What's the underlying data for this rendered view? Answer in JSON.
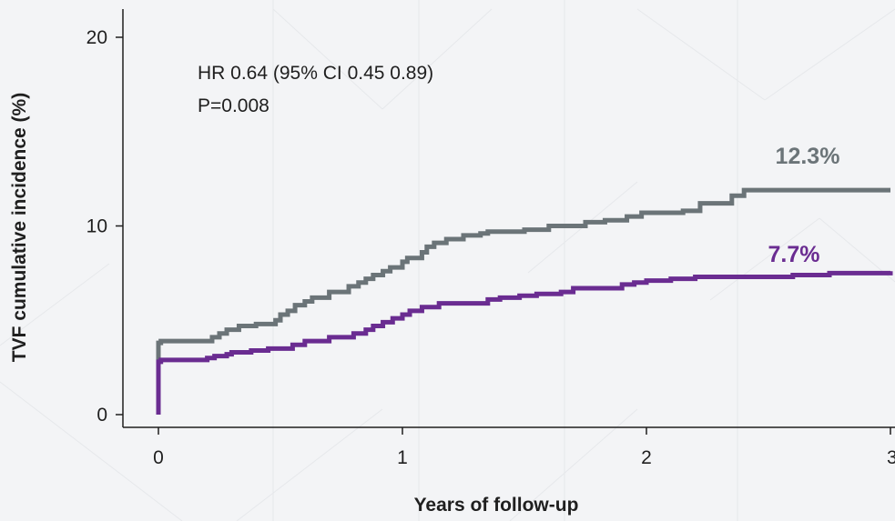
{
  "chart_data": {
    "type": "line",
    "title": "",
    "xlabel": "Years of follow-up",
    "ylabel": "TVF cumulative incidence (%)",
    "xlim": [
      0,
      3
    ],
    "ylim": [
      0,
      20
    ],
    "x_ticks": [
      0,
      1,
      2,
      3
    ],
    "x_tick_labels": [
      "0",
      "1",
      "2",
      "3"
    ],
    "y_ticks": [
      0,
      10,
      20
    ],
    "y_tick_labels": [
      "0",
      "10",
      "20"
    ],
    "grid": false,
    "annotations": {
      "hr_text": "HR 0.64 (95% CI 0.45 0.89)",
      "p_text": "P=0.008"
    },
    "series": [
      {
        "color": "#6b7478",
        "end_label": "12.3%",
        "x": [
          0,
          0,
          0.01,
          0.22,
          0.25,
          0.28,
          0.33,
          0.4,
          0.48,
          0.5,
          0.53,
          0.56,
          0.6,
          0.63,
          0.7,
          0.78,
          0.82,
          0.85,
          0.88,
          0.92,
          0.95,
          1.0,
          1.02,
          1.08,
          1.1,
          1.13,
          1.18,
          1.25,
          1.32,
          1.35,
          1.5,
          1.6,
          1.75,
          1.83,
          1.92,
          1.98,
          2.15,
          2.22,
          2.35,
          2.4,
          3.0
        ],
        "y": [
          0,
          3.8,
          3.9,
          4.1,
          4.3,
          4.5,
          4.7,
          4.8,
          5.0,
          5.3,
          5.5,
          5.8,
          6.0,
          6.2,
          6.5,
          6.8,
          7.0,
          7.2,
          7.4,
          7.6,
          7.8,
          8.1,
          8.3,
          8.6,
          8.9,
          9.1,
          9.3,
          9.5,
          9.6,
          9.7,
          9.8,
          10.0,
          10.2,
          10.3,
          10.5,
          10.7,
          10.8,
          11.2,
          11.6,
          11.9,
          11.9
        ]
      },
      {
        "color": "#6a2c91",
        "end_label": "7.7%",
        "x": [
          0,
          0,
          0.01,
          0.2,
          0.23,
          0.28,
          0.3,
          0.38,
          0.45,
          0.55,
          0.6,
          0.7,
          0.8,
          0.85,
          0.88,
          0.92,
          0.96,
          1.0,
          1.03,
          1.08,
          1.15,
          1.35,
          1.4,
          1.48,
          1.55,
          1.65,
          1.7,
          1.9,
          1.95,
          2.0,
          2.1,
          2.2,
          2.6,
          2.75,
          2.8,
          3.0
        ],
        "y": [
          0,
          2.8,
          2.9,
          3.0,
          3.1,
          3.2,
          3.3,
          3.4,
          3.5,
          3.7,
          3.9,
          4.1,
          4.3,
          4.5,
          4.7,
          4.9,
          5.1,
          5.3,
          5.5,
          5.7,
          5.9,
          6.1,
          6.2,
          6.3,
          6.4,
          6.5,
          6.7,
          6.9,
          7.0,
          7.1,
          7.2,
          7.3,
          7.4,
          7.5,
          7.5,
          7.6
        ]
      }
    ]
  }
}
